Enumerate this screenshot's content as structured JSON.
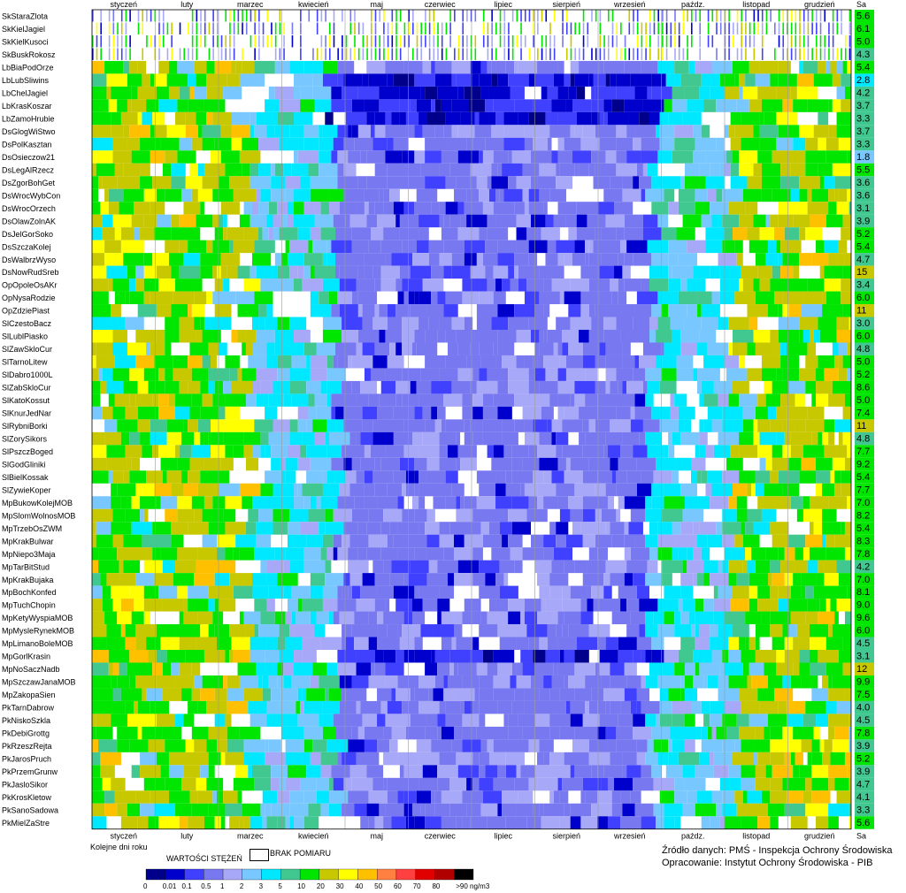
{
  "chart_data": {
    "type": "heatmap",
    "title": "",
    "xlabel": "Kolejne dni roku",
    "ylabel": "",
    "months": [
      "styczeń",
      "luty",
      "marzec",
      "kwiecień",
      "maj",
      "czerwiec",
      "lipiec",
      "sierpień",
      "wrzesień",
      "paźdz.",
      "listopad",
      "grudzień"
    ],
    "summary_column_label": "Sa",
    "stations": [
      {
        "name": "SkStaraZlota",
        "sa": "5.6"
      },
      {
        "name": "SkKielJagiel",
        "sa": "6.1"
      },
      {
        "name": "SkKielKusoci",
        "sa": "5.0"
      },
      {
        "name": "SkBuskRokosz",
        "sa": "4.3"
      },
      {
        "name": "LbBiaPodOrze",
        "sa": "5.4"
      },
      {
        "name": "LbLubSliwins",
        "sa": "2.8"
      },
      {
        "name": "LbChelJagiel",
        "sa": "4.2"
      },
      {
        "name": "LbKrasKoszar",
        "sa": "3.7"
      },
      {
        "name": "LbZamoHrubie",
        "sa": "3.3"
      },
      {
        "name": "DsGlogWiStwo",
        "sa": "3.7"
      },
      {
        "name": "DsPolKasztan",
        "sa": "3.3"
      },
      {
        "name": "DsOsieczow21",
        "sa": "1.8"
      },
      {
        "name": "DsLegAlRzecz",
        "sa": "5.5"
      },
      {
        "name": "DsZgorBohGet",
        "sa": "3.6"
      },
      {
        "name": "DsWrocWybCon",
        "sa": "3.6"
      },
      {
        "name": "DsWrocOrzech",
        "sa": "3.1"
      },
      {
        "name": "DsOlawZolnAK",
        "sa": "3.9"
      },
      {
        "name": "DsJelGorSoko",
        "sa": "5.2"
      },
      {
        "name": "DsSzczaKolej",
        "sa": "5.4"
      },
      {
        "name": "DsWalbrzWyso",
        "sa": "4.7"
      },
      {
        "name": "DsNowRudSreb",
        "sa": "15"
      },
      {
        "name": "OpOpoleOsAKr",
        "sa": "3.4"
      },
      {
        "name": "OpNysaRodzie",
        "sa": "6.0"
      },
      {
        "name": "OpZdziePiast",
        "sa": "11"
      },
      {
        "name": "SlCzestoBacz",
        "sa": "3.0"
      },
      {
        "name": "SlLublPiasko",
        "sa": "6.0"
      },
      {
        "name": "SlZawSkloCur",
        "sa": "4.8"
      },
      {
        "name": "SlTarnoLitew",
        "sa": "5.0"
      },
      {
        "name": "SlDabro1000L",
        "sa": "5.2"
      },
      {
        "name": "SlZabSkloCur",
        "sa": "8.6"
      },
      {
        "name": "SlKatoKossut",
        "sa": "5.0"
      },
      {
        "name": "SlKnurJedNar",
        "sa": "7.4"
      },
      {
        "name": "SlRybniBorki",
        "sa": "11"
      },
      {
        "name": "SlZorySikors",
        "sa": "4.8"
      },
      {
        "name": "SlPszczBoged",
        "sa": "7.7"
      },
      {
        "name": "SlGodGliniki",
        "sa": "9.2"
      },
      {
        "name": "SlBielKossak",
        "sa": "5.4"
      },
      {
        "name": "SlZywieKoper",
        "sa": "7.7"
      },
      {
        "name": "MpBukowKolejMOB",
        "sa": "7.0"
      },
      {
        "name": "MpSlomWolnosMOB",
        "sa": "8.2"
      },
      {
        "name": "MpTrzebOsZWM",
        "sa": "5.4"
      },
      {
        "name": "MpKrakBulwar",
        "sa": "8.3"
      },
      {
        "name": "MpNiepo3Maja",
        "sa": "7.8"
      },
      {
        "name": "MpTarBitStud",
        "sa": "4.2"
      },
      {
        "name": "MpKrakBujaka",
        "sa": "7.0"
      },
      {
        "name": "MpBochKonfed",
        "sa": "8.1"
      },
      {
        "name": "MpTuchChopin",
        "sa": "9.0"
      },
      {
        "name": "MpKetyWyspiaMOB",
        "sa": "9.6"
      },
      {
        "name": "MpMysleRynekMOB",
        "sa": "6.0"
      },
      {
        "name": "MpLimanoBoleMOB",
        "sa": "4.5"
      },
      {
        "name": "MpGorlKrasin",
        "sa": "3.1"
      },
      {
        "name": "MpNoSaczNadb",
        "sa": "12"
      },
      {
        "name": "MpSzczawJanaMOB",
        "sa": "9.9"
      },
      {
        "name": "MpZakopaSien",
        "sa": "7.5"
      },
      {
        "name": "PkTarnDabrow",
        "sa": "4.0"
      },
      {
        "name": "PkNiskoSzkla",
        "sa": "4.5"
      },
      {
        "name": "PkDebiGrottg",
        "sa": "7.8"
      },
      {
        "name": "PkRzeszRejta",
        "sa": "3.9"
      },
      {
        "name": "PkJarosPruch",
        "sa": "5.2"
      },
      {
        "name": "PkPrzemGrunw",
        "sa": "3.9"
      },
      {
        "name": "PkJasloSikor",
        "sa": "4.7"
      },
      {
        "name": "PkKrosKletow",
        "sa": "4.1"
      },
      {
        "name": "PkSanoSadowa",
        "sa": "3.3"
      },
      {
        "name": "PkMielZaStre",
        "sa": "5.6"
      }
    ],
    "legend": {
      "title": "WARTOŚCI STĘŻEŃ",
      "missing_label": "BRAK POMIARU",
      "tick_labels": [
        "0",
        "0.01",
        "0.1",
        "0.5",
        "1",
        "2",
        "3",
        "5",
        "10",
        "20",
        "30",
        "40",
        "50",
        "60",
        "70",
        "80",
        ">90 ng/m3"
      ],
      "colors": [
        "#00008b",
        "#0000cd",
        "#4040ff",
        "#7878f0",
        "#a8a8f8",
        "#78c8ff",
        "#00e8ff",
        "#40c890",
        "#00e600",
        "#c8c800",
        "#ffff00",
        "#ffc000",
        "#ff8040",
        "#ff4040",
        "#e00000",
        "#b00000",
        "#000000"
      ],
      "missing_color": "#ffffff"
    },
    "source_line_1": "Źródło danych: PMŚ - Inspekcja Ochrony Środowiska",
    "source_line_2": "Opracowanie: Instytut Ochrony Środowiska - PIB"
  }
}
